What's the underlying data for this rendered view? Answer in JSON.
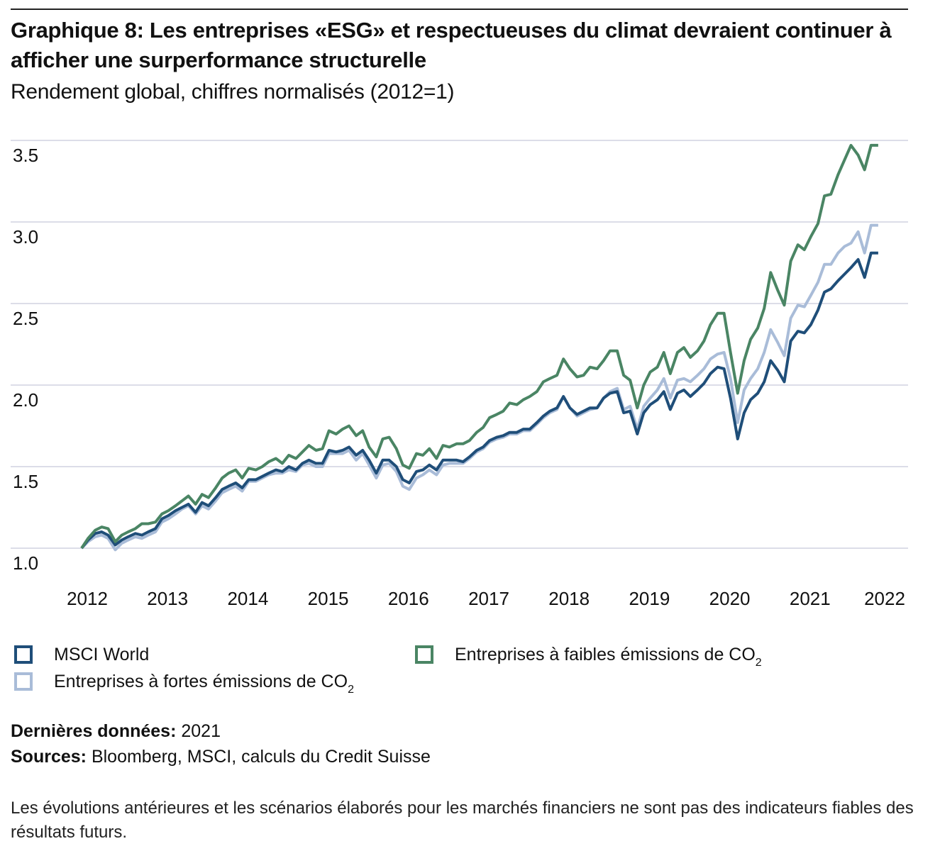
{
  "header": {
    "title": "Graphique 8: Les entreprises «ESG» et respectueuses du climat devraient continuer à afficher une surperformance structurelle",
    "subtitle": "Rendement global, chiffres normalisés (2012=1)"
  },
  "legend": {
    "items": [
      {
        "label": "MSCI World",
        "sub": "",
        "color": "#1f4e79"
      },
      {
        "label": "Entreprises à fortes émissions de CO",
        "sub": "2",
        "color": "#a9bcd8"
      },
      {
        "label": "Entreprises à faibles émissions de CO",
        "sub": "2",
        "color": "#4a8564"
      }
    ]
  },
  "footer": {
    "latest_label": "Dernières données:",
    "latest_value": "2021",
    "sources_label": "Sources:",
    "sources_value": "Bloomberg, MSCI, calculs du Credit Suisse",
    "disclaimer": "Les évolutions antérieures et les scénarios élaborés pour les marchés financiers ne sont pas des indicateurs fiables des résultats futurs."
  },
  "chart_data": {
    "type": "line",
    "title": "Graphique 8: Les entreprises «ESG» et respectueuses du climat devraient continuer à afficher une surperformance structurelle",
    "subtitle": "Rendement global, chiffres normalisés (2012=1)",
    "xlabel": "",
    "ylabel": "",
    "xlim": [
      2012,
      2022
    ],
    "ylim": [
      1.0,
      3.5
    ],
    "yticks": [
      "1.0",
      "1.5",
      "2.0",
      "2.5",
      "3.0",
      "3.5"
    ],
    "ytick_values": [
      1.0,
      1.5,
      2.0,
      2.5,
      3.0,
      3.5
    ],
    "xticks": [
      "2012",
      "2013",
      "2014",
      "2015",
      "2016",
      "2017",
      "2018",
      "2019",
      "2020",
      "2021",
      "2022"
    ],
    "xtick_values": [
      2012,
      2013,
      2014,
      2015,
      2016,
      2017,
      2018,
      2019,
      2020,
      2021,
      2022
    ],
    "grid": "horizontal",
    "legend_position": "bottom",
    "x": [
      2012.0,
      2012.08,
      2012.17,
      2012.25,
      2012.33,
      2012.42,
      2012.5,
      2012.58,
      2012.67,
      2012.75,
      2012.83,
      2012.92,
      2013.0,
      2013.08,
      2013.17,
      2013.25,
      2013.33,
      2013.42,
      2013.5,
      2013.58,
      2013.67,
      2013.75,
      2013.83,
      2013.92,
      2014.0,
      2014.08,
      2014.17,
      2014.25,
      2014.33,
      2014.42,
      2014.5,
      2014.58,
      2014.67,
      2014.75,
      2014.83,
      2014.92,
      2015.0,
      2015.08,
      2015.17,
      2015.25,
      2015.33,
      2015.42,
      2015.5,
      2015.58,
      2015.67,
      2015.75,
      2015.83,
      2015.92,
      2016.0,
      2016.08,
      2016.17,
      2016.25,
      2016.33,
      2016.42,
      2016.5,
      2016.58,
      2016.67,
      2016.75,
      2016.83,
      2016.92,
      2017.0,
      2017.08,
      2017.17,
      2017.25,
      2017.33,
      2017.42,
      2017.5,
      2017.58,
      2017.67,
      2017.75,
      2017.83,
      2017.92,
      2018.0,
      2018.08,
      2018.17,
      2018.25,
      2018.33,
      2018.42,
      2018.5,
      2018.58,
      2018.67,
      2018.75,
      2018.83,
      2018.92,
      2019.0,
      2019.08,
      2019.17,
      2019.25,
      2019.33,
      2019.42,
      2019.5,
      2019.58,
      2019.67,
      2019.75,
      2019.83,
      2019.92,
      2020.0,
      2020.08,
      2020.17,
      2020.25,
      2020.33,
      2020.42,
      2020.5,
      2020.58,
      2020.67,
      2020.75,
      2020.83,
      2020.92,
      2021.0,
      2021.08,
      2021.17,
      2021.25,
      2021.33,
      2021.42,
      2021.5,
      2021.58,
      2021.67,
      2021.75,
      2021.83,
      2021.92
    ],
    "series": [
      {
        "name": "MSCI World",
        "color": "#1f4e79",
        "values": [
          1.0,
          1.05,
          1.09,
          1.1,
          1.08,
          1.02,
          1.05,
          1.07,
          1.09,
          1.08,
          1.1,
          1.12,
          1.18,
          1.2,
          1.23,
          1.25,
          1.27,
          1.22,
          1.28,
          1.26,
          1.31,
          1.36,
          1.38,
          1.4,
          1.37,
          1.42,
          1.42,
          1.44,
          1.46,
          1.48,
          1.47,
          1.5,
          1.48,
          1.52,
          1.54,
          1.52,
          1.52,
          1.6,
          1.59,
          1.6,
          1.62,
          1.57,
          1.6,
          1.54,
          1.46,
          1.54,
          1.54,
          1.5,
          1.42,
          1.4,
          1.47,
          1.48,
          1.51,
          1.48,
          1.54,
          1.54,
          1.54,
          1.53,
          1.56,
          1.6,
          1.62,
          1.66,
          1.68,
          1.69,
          1.71,
          1.71,
          1.73,
          1.73,
          1.77,
          1.81,
          1.84,
          1.86,
          1.93,
          1.86,
          1.82,
          1.84,
          1.86,
          1.86,
          1.92,
          1.95,
          1.96,
          1.83,
          1.84,
          1.7,
          1.83,
          1.88,
          1.91,
          1.96,
          1.85,
          1.95,
          1.97,
          1.93,
          1.97,
          2.01,
          2.07,
          2.11,
          2.1,
          1.92,
          1.67,
          1.83,
          1.91,
          1.95,
          2.02,
          2.15,
          2.09,
          2.02,
          2.27,
          2.33,
          2.32,
          2.37,
          2.46,
          2.57,
          2.59,
          2.64,
          2.68,
          2.72,
          2.77,
          2.66,
          2.81,
          2.81
        ]
      },
      {
        "name": "Entreprises à fortes émissions de CO2",
        "color": "#a9bcd8",
        "values": [
          1.0,
          1.04,
          1.07,
          1.08,
          1.06,
          0.99,
          1.03,
          1.05,
          1.07,
          1.06,
          1.08,
          1.1,
          1.16,
          1.18,
          1.21,
          1.24,
          1.26,
          1.21,
          1.26,
          1.24,
          1.29,
          1.34,
          1.36,
          1.38,
          1.35,
          1.41,
          1.41,
          1.43,
          1.45,
          1.46,
          1.46,
          1.48,
          1.47,
          1.51,
          1.52,
          1.5,
          1.5,
          1.58,
          1.58,
          1.58,
          1.6,
          1.54,
          1.58,
          1.51,
          1.43,
          1.51,
          1.52,
          1.47,
          1.38,
          1.36,
          1.43,
          1.45,
          1.48,
          1.45,
          1.51,
          1.52,
          1.52,
          1.52,
          1.55,
          1.59,
          1.61,
          1.65,
          1.67,
          1.68,
          1.7,
          1.7,
          1.72,
          1.72,
          1.76,
          1.8,
          1.83,
          1.85,
          1.93,
          1.86,
          1.81,
          1.83,
          1.85,
          1.86,
          1.92,
          1.96,
          1.98,
          1.85,
          1.87,
          1.73,
          1.87,
          1.92,
          1.97,
          2.04,
          1.92,
          2.03,
          2.04,
          2.02,
          2.06,
          2.1,
          2.16,
          2.19,
          2.2,
          2.04,
          1.77,
          1.97,
          2.04,
          2.1,
          2.2,
          2.34,
          2.26,
          2.18,
          2.41,
          2.49,
          2.48,
          2.55,
          2.63,
          2.74,
          2.74,
          2.81,
          2.85,
          2.87,
          2.94,
          2.81,
          2.98,
          2.98
        ]
      },
      {
        "name": "Entreprises à faibles émissions de CO2",
        "color": "#4a8564",
        "values": [
          1.0,
          1.06,
          1.11,
          1.13,
          1.12,
          1.04,
          1.08,
          1.1,
          1.12,
          1.15,
          1.15,
          1.16,
          1.21,
          1.23,
          1.26,
          1.29,
          1.32,
          1.27,
          1.33,
          1.31,
          1.37,
          1.43,
          1.46,
          1.48,
          1.43,
          1.49,
          1.48,
          1.5,
          1.53,
          1.55,
          1.52,
          1.57,
          1.55,
          1.59,
          1.63,
          1.6,
          1.61,
          1.72,
          1.7,
          1.73,
          1.75,
          1.69,
          1.72,
          1.62,
          1.56,
          1.67,
          1.68,
          1.61,
          1.51,
          1.49,
          1.58,
          1.57,
          1.61,
          1.55,
          1.63,
          1.62,
          1.64,
          1.64,
          1.66,
          1.71,
          1.74,
          1.8,
          1.82,
          1.84,
          1.89,
          1.88,
          1.91,
          1.93,
          1.96,
          2.02,
          2.04,
          2.06,
          2.16,
          2.1,
          2.05,
          2.06,
          2.11,
          2.1,
          2.15,
          2.21,
          2.21,
          2.06,
          2.03,
          1.86,
          2.0,
          2.08,
          2.11,
          2.2,
          2.07,
          2.2,
          2.23,
          2.17,
          2.21,
          2.27,
          2.37,
          2.44,
          2.44,
          2.2,
          1.95,
          2.15,
          2.28,
          2.35,
          2.47,
          2.69,
          2.58,
          2.49,
          2.76,
          2.86,
          2.83,
          2.91,
          2.99,
          3.16,
          3.17,
          3.29,
          3.38,
          3.47,
          3.41,
          3.32,
          3.47,
          3.47
        ]
      }
    ]
  }
}
